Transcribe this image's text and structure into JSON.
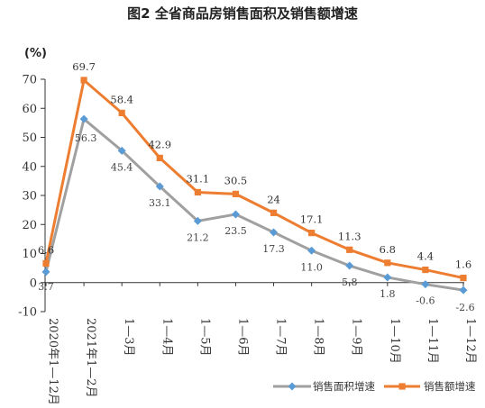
{
  "chart_data": {
    "type": "line",
    "title": "图2 全省商品房销售面积及销售额增速",
    "ylabel": "(%)",
    "xlabel": "",
    "ylim": [
      -10,
      70
    ],
    "yticks": [
      -10,
      0,
      10,
      20,
      30,
      40,
      50,
      60,
      70
    ],
    "grid": false,
    "legend_position": "bottom-right",
    "categories": [
      "2020年1—12月",
      "2021年1—2月",
      "1—3月",
      "1—4月",
      "1—5月",
      "1—6月",
      "1—7月",
      "1—8月",
      "1—9月",
      "1—10月",
      "1—11月",
      "1—12月"
    ],
    "series": [
      {
        "name": "销售面积增速",
        "color": "#a0a0a0",
        "marker_color": "#5b9bd5",
        "marker": "diamond",
        "values": [
          3.7,
          56.3,
          45.4,
          33.1,
          21.2,
          23.5,
          17.3,
          11.0,
          5.8,
          1.8,
          -0.6,
          -2.6
        ],
        "labels": [
          "3.7",
          "56.3",
          "45.4",
          "33.1",
          "21.2",
          "23.5",
          "17.3",
          "11.0",
          "5.8",
          "1.8",
          "-0.6",
          "-2.6"
        ]
      },
      {
        "name": "销售额增速",
        "color": "#ed7d31",
        "marker_color": "#ed7d31",
        "marker": "square",
        "values": [
          6.6,
          69.7,
          58.4,
          42.9,
          31.1,
          30.5,
          24.0,
          17.1,
          11.3,
          6.8,
          4.4,
          1.6
        ],
        "labels": [
          "6.6",
          "69.7",
          "58.4",
          "42.9",
          "31.1",
          "30.5",
          "24",
          "17.1",
          "11.3",
          "6.8",
          "4.4",
          "1.6"
        ]
      }
    ]
  }
}
